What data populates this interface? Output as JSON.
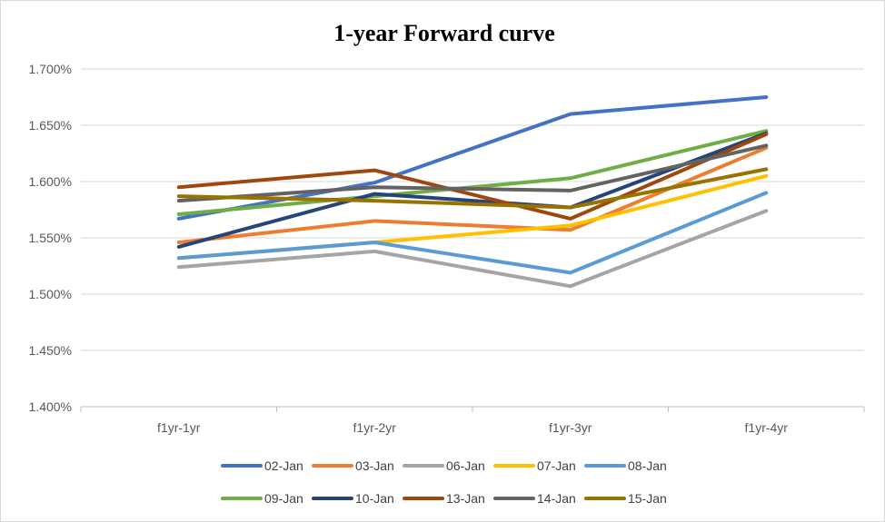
{
  "chart_data": {
    "type": "line",
    "title": "1-year Forward curve",
    "xlabel": "",
    "ylabel": "",
    "categories": [
      "f1yr-1yr",
      "f1yr-2yr",
      "f1yr-3yr",
      "f1yr-4yr"
    ],
    "ylim": [
      1.4,
      1.7
    ],
    "yticks": [
      "1.700%",
      "1.650%",
      "1.600%",
      "1.550%",
      "1.500%",
      "1.450%",
      "1.400%"
    ],
    "y_unit": "%",
    "grid": true,
    "legend_position": "bottom",
    "series": [
      {
        "name": "02-Jan",
        "color": "#4472C4",
        "values": [
          1.567,
          1.599,
          1.66,
          1.675
        ]
      },
      {
        "name": "03-Jan",
        "color": "#ED7D31",
        "values": [
          1.546,
          1.565,
          1.557,
          1.63
        ]
      },
      {
        "name": "06-Jan",
        "color": "#A5A5A5",
        "values": [
          1.524,
          1.538,
          1.507,
          1.574
        ]
      },
      {
        "name": "07-Jan",
        "color": "#FFC000",
        "values": [
          1.532,
          1.546,
          1.561,
          1.605
        ]
      },
      {
        "name": "08-Jan",
        "color": "#5B9BD5",
        "values": [
          1.532,
          1.546,
          1.519,
          1.59
        ]
      },
      {
        "name": "09-Jan",
        "color": "#70AD47",
        "values": [
          1.571,
          1.587,
          1.603,
          1.645
        ]
      },
      {
        "name": "10-Jan",
        "color": "#264478",
        "values": [
          1.542,
          1.589,
          1.577,
          1.643
        ]
      },
      {
        "name": "13-Jan",
        "color": "#9E480E",
        "values": [
          1.595,
          1.61,
          1.567,
          1.642
        ]
      },
      {
        "name": "14-Jan",
        "color": "#636363",
        "values": [
          1.583,
          1.595,
          1.592,
          1.632
        ]
      },
      {
        "name": "15-Jan",
        "color": "#997300",
        "values": [
          1.587,
          1.583,
          1.577,
          1.611
        ]
      }
    ]
  }
}
